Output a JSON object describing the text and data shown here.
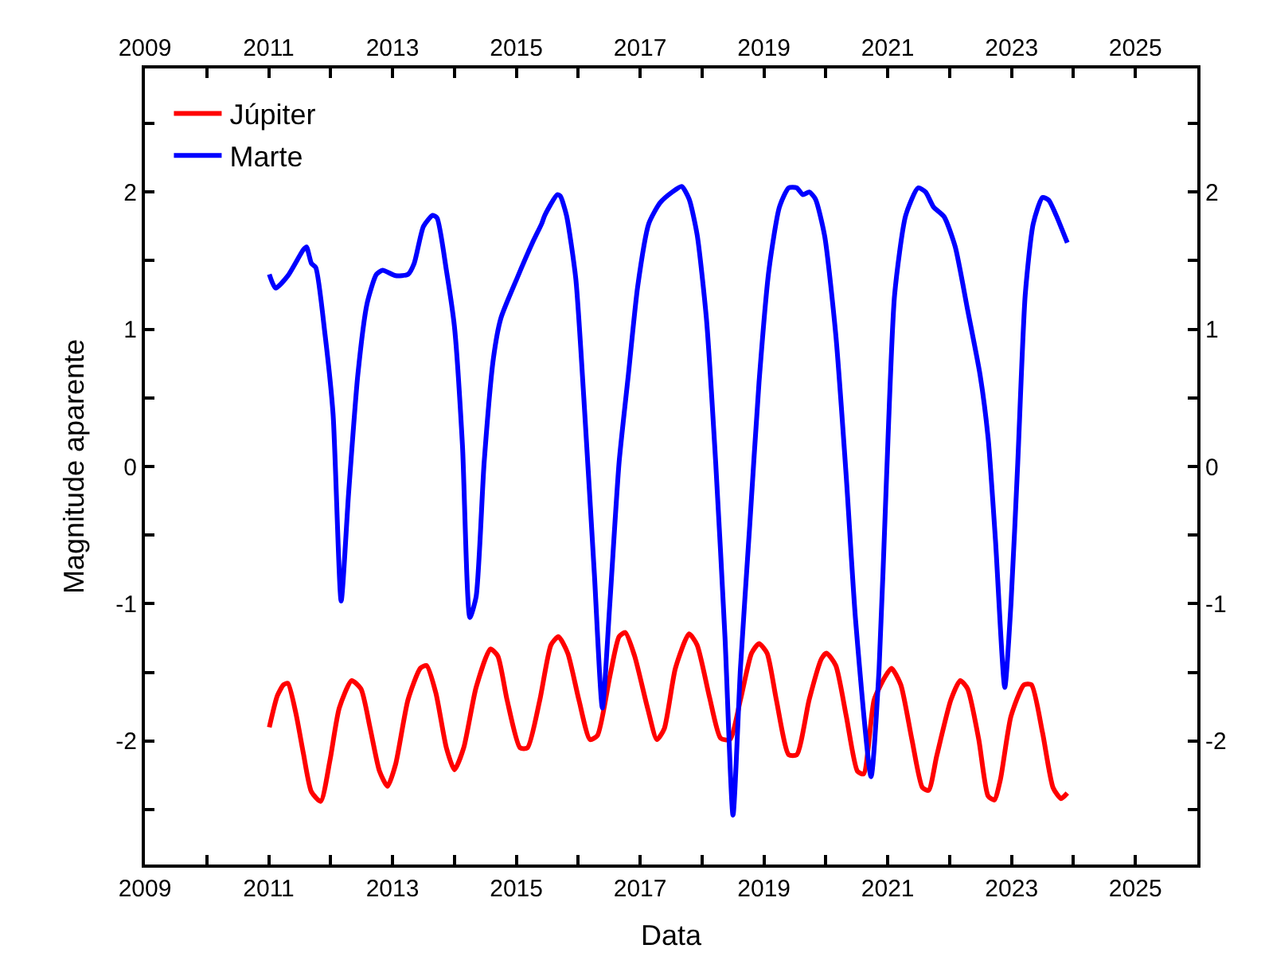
{
  "chart_data": {
    "type": "line",
    "xlabel": "Data",
    "ylabel": "Magnitude aparente",
    "xlim": [
      2009,
      2026
    ],
    "ylim": [
      -2.9,
      2.9
    ],
    "xticks": [
      2009,
      {
        "value": 2010,
        "label": null
      },
      2011,
      {
        "value": 2012,
        "label": null
      },
      2013,
      {
        "value": 2014,
        "label": null
      },
      2015,
      {
        "value": 2016,
        "label": null
      },
      2017,
      {
        "value": 2018,
        "label": null
      },
      2019,
      {
        "value": 2020,
        "label": null
      },
      2021,
      {
        "value": 2022,
        "label": null
      },
      2023,
      {
        "value": 2024,
        "label": null
      },
      2025,
      {
        "value": 2026,
        "label": null
      }
    ],
    "x2lim": [
      2009,
      2026
    ],
    "x2ticks": [
      2009,
      {
        "value": 2010,
        "label": null
      },
      2011,
      {
        "value": 2012,
        "label": null
      },
      2013,
      {
        "value": 2014,
        "label": null
      },
      2015,
      {
        "value": 2016,
        "label": null
      },
      2017,
      {
        "value": 2018,
        "label": null
      },
      2019,
      {
        "value": 2020,
        "label": null
      },
      2021,
      {
        "value": 2022,
        "label": null
      },
      2023,
      {
        "value": 2024,
        "label": null
      },
      2025,
      {
        "value": 2026,
        "label": null
      }
    ],
    "yticks": [
      {
        "value": -2.5,
        "label": null
      },
      -2,
      {
        "value": -1.5,
        "label": null
      },
      -1,
      {
        "value": -0.5,
        "label": null
      },
      0,
      {
        "value": 0.5,
        "label": null
      },
      1,
      {
        "value": 1.5,
        "label": null
      },
      2,
      {
        "value": 2.5,
        "label": null
      }
    ],
    "y2lim": [
      -2.9,
      2.9
    ],
    "y2ticks": [
      {
        "value": -2.5,
        "label": null
      },
      -2,
      {
        "value": -1.5,
        "label": null
      },
      -1,
      {
        "value": -0.5,
        "label": null
      },
      0,
      {
        "value": 0.5,
        "label": null
      },
      1,
      {
        "value": 1.5,
        "label": null
      },
      2,
      {
        "value": 2.5,
        "label": null
      }
    ],
    "legend": "top left",
    "marker": "none",
    "line_style": "solid",
    "series": [
      {
        "name": "Júpiter",
        "color": "#ff0000",
        "x": [
          2011.01,
          2011.14,
          2011.24,
          2011.31,
          2011.44,
          2011.56,
          2011.69,
          2011.84,
          2011.99,
          2012.14,
          2012.34,
          2012.49,
          2012.64,
          2012.79,
          2012.92,
          2013.05,
          2013.25,
          2013.45,
          2013.55,
          2013.7,
          2013.87,
          2014.0,
          2014.15,
          2014.35,
          2014.58,
          2014.7,
          2014.85,
          2015.06,
          2015.18,
          2015.38,
          2015.56,
          2015.68,
          2015.83,
          2016.01,
          2016.19,
          2016.31,
          2016.51,
          2016.66,
          2016.76,
          2016.91,
          2017.12,
          2017.27,
          2017.39,
          2017.57,
          2017.79,
          2017.92,
          2018.12,
          2018.3,
          2018.45,
          2018.62,
          2018.8,
          2018.92,
          2019.05,
          2019.2,
          2019.4,
          2019.53,
          2019.73,
          2019.93,
          2020.01,
          2020.16,
          2020.33,
          2020.51,
          2020.61,
          2020.78,
          2020.96,
          2021.06,
          2021.21,
          2021.39,
          2021.56,
          2021.66,
          2021.79,
          2022.02,
          2022.17,
          2022.29,
          2022.47,
          2022.62,
          2022.72,
          2022.82,
          2022.99,
          2023.2,
          2023.32,
          2023.5,
          2023.67,
          2023.8,
          2023.9
        ],
        "values": [
          -1.9,
          -1.67,
          -1.59,
          -1.58,
          -1.8,
          -2.09,
          -2.37,
          -2.44,
          -2.14,
          -1.76,
          -1.56,
          -1.62,
          -1.91,
          -2.22,
          -2.33,
          -2.17,
          -1.7,
          -1.47,
          -1.45,
          -1.65,
          -2.05,
          -2.21,
          -2.05,
          -1.61,
          -1.33,
          -1.38,
          -1.7,
          -2.05,
          -2.05,
          -1.7,
          -1.3,
          -1.24,
          -1.36,
          -1.7,
          -1.99,
          -1.96,
          -1.53,
          -1.24,
          -1.21,
          -1.38,
          -1.76,
          -1.99,
          -1.91,
          -1.47,
          -1.22,
          -1.3,
          -1.68,
          -1.98,
          -1.99,
          -1.7,
          -1.36,
          -1.29,
          -1.36,
          -1.7,
          -2.1,
          -2.1,
          -1.7,
          -1.4,
          -1.36,
          -1.45,
          -1.82,
          -2.22,
          -2.24,
          -1.7,
          -1.53,
          -1.47,
          -1.59,
          -1.99,
          -2.34,
          -2.36,
          -2.11,
          -1.7,
          -1.56,
          -1.62,
          -1.99,
          -2.4,
          -2.43,
          -2.28,
          -1.82,
          -1.59,
          -1.59,
          -1.94,
          -2.34,
          -2.42,
          -2.38
        ]
      },
      {
        "name": "Marte",
        "color": "#0000ff",
        "x": [
          2011.01,
          2011.11,
          2011.31,
          2011.56,
          2011.61,
          2011.69,
          2011.76,
          2011.91,
          2012.04,
          2012.17,
          2012.29,
          2012.44,
          2012.59,
          2012.74,
          2012.84,
          2013.05,
          2013.25,
          2013.35,
          2013.5,
          2013.65,
          2013.72,
          2013.87,
          2014.0,
          2014.13,
          2014.25,
          2014.35,
          2014.48,
          2014.63,
          2014.75,
          2015.01,
          2015.26,
          2015.41,
          2015.46,
          2015.66,
          2015.71,
          2015.81,
          2015.96,
          2016.09,
          2016.26,
          2016.39,
          2016.51,
          2016.66,
          2016.81,
          2016.96,
          2017.14,
          2017.32,
          2017.52,
          2017.67,
          2017.79,
          2017.92,
          2018.07,
          2018.22,
          2018.37,
          2018.5,
          2018.62,
          2018.77,
          2018.92,
          2019.08,
          2019.25,
          2019.4,
          2019.53,
          2019.63,
          2019.73,
          2019.83,
          2019.98,
          2020.16,
          2020.33,
          2020.48,
          2020.73,
          2020.86,
          2020.98,
          2021.11,
          2021.29,
          2021.49,
          2021.61,
          2021.74,
          2021.91,
          2022.09,
          2022.29,
          2022.49,
          2022.62,
          2022.74,
          2022.89,
          2022.99,
          2023.1,
          2023.22,
          2023.35,
          2023.5,
          2023.6,
          2023.72,
          2023.9
        ],
        "values": [
          1.4,
          1.3,
          1.39,
          1.58,
          1.6,
          1.48,
          1.45,
          0.96,
          0.38,
          -0.98,
          -0.2,
          0.67,
          1.19,
          1.4,
          1.43,
          1.39,
          1.4,
          1.48,
          1.75,
          1.83,
          1.81,
          1.43,
          1.02,
          0.15,
          -1.1,
          -0.95,
          0.03,
          0.79,
          1.08,
          1.37,
          1.63,
          1.77,
          1.83,
          1.98,
          1.97,
          1.83,
          1.37,
          0.5,
          -0.78,
          -1.76,
          -1.0,
          0.03,
          0.67,
          1.31,
          1.77,
          1.92,
          2.0,
          2.04,
          1.95,
          1.69,
          1.08,
          0.03,
          -1.24,
          -2.54,
          -1.47,
          -0.43,
          0.61,
          1.43,
          1.89,
          2.03,
          2.03,
          1.98,
          2.0,
          1.95,
          1.68,
          0.96,
          -0.08,
          -1.12,
          -2.26,
          -1.47,
          -0.08,
          1.25,
          1.83,
          2.03,
          2.0,
          1.89,
          1.82,
          1.6,
          1.14,
          0.67,
          0.21,
          -0.54,
          -1.61,
          -1.0,
          0.03,
          1.25,
          1.77,
          1.96,
          1.94,
          1.83,
          1.63
        ]
      }
    ]
  }
}
